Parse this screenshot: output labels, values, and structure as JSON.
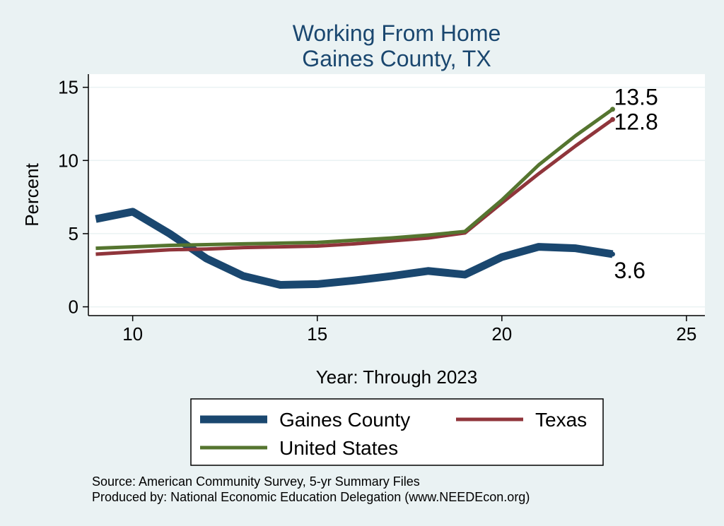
{
  "chart_data": {
    "type": "line",
    "title": [
      "Working From Home",
      "Gaines County, TX"
    ],
    "xlabel": "Year: Through 2023",
    "ylabel": "Percent",
    "xlim": [
      8.8,
      25.5
    ],
    "ylim": [
      -0.6,
      15.9
    ],
    "xticks": [
      10,
      15,
      20,
      25
    ],
    "yticks": [
      0,
      5,
      10,
      15
    ],
    "grid": true,
    "legend_position": "bottom",
    "series": [
      {
        "name": "Gaines County",
        "color": "#1a476f",
        "width": 11,
        "end_label": "3.6",
        "x": [
          9,
          10,
          11,
          12,
          13,
          14,
          15,
          16,
          17,
          18,
          19,
          20,
          21,
          22,
          23
        ],
        "y": [
          6.0,
          6.5,
          5.0,
          3.3,
          2.1,
          1.5,
          1.55,
          1.8,
          2.1,
          2.45,
          2.2,
          3.4,
          4.1,
          4.0,
          3.6
        ]
      },
      {
        "name": "Texas",
        "color": "#90353b",
        "width": 5,
        "end_label": "12.8",
        "x": [
          9,
          10,
          11,
          12,
          13,
          14,
          15,
          16,
          17,
          18,
          19,
          20,
          21,
          22,
          23
        ],
        "y": [
          3.6,
          3.75,
          3.9,
          3.95,
          4.05,
          4.1,
          4.15,
          4.3,
          4.5,
          4.7,
          5.05,
          7.1,
          9.1,
          11.0,
          12.8
        ]
      },
      {
        "name": "United States",
        "color": "#55752f",
        "width": 5,
        "end_label": "13.5",
        "x": [
          9,
          10,
          11,
          12,
          13,
          14,
          15,
          16,
          17,
          18,
          19,
          20,
          21,
          22,
          23
        ],
        "y": [
          4.0,
          4.1,
          4.2,
          4.25,
          4.3,
          4.35,
          4.4,
          4.55,
          4.7,
          4.9,
          5.15,
          7.3,
          9.7,
          11.7,
          13.5
        ]
      }
    ],
    "legend_order": [
      "Gaines County",
      "Texas",
      "United States"
    ],
    "notes": [
      "Source: American Community Survey, 5-yr Summary Files",
      "Produced by: National Economic Education Delegation (www.NEEDEcon.org)"
    ]
  }
}
